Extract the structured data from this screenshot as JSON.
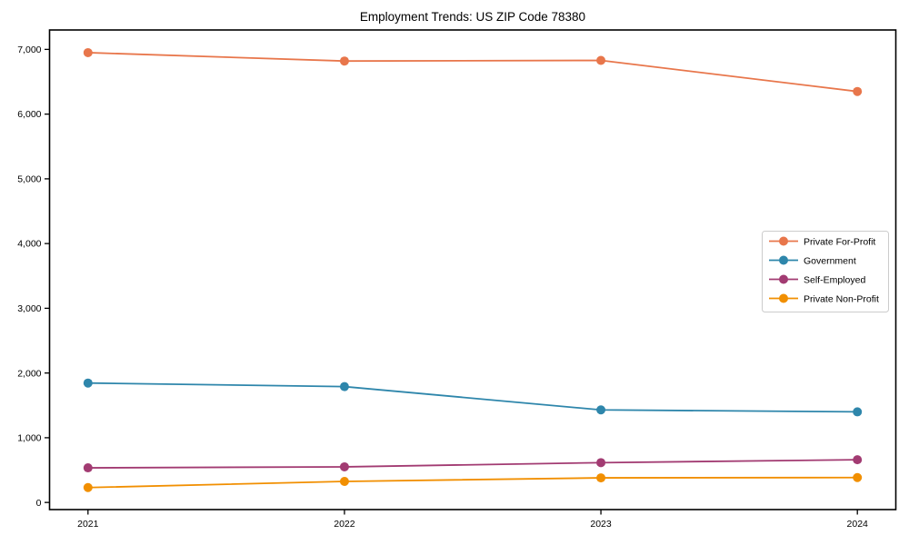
{
  "chart_data": {
    "type": "line",
    "title": "Employment Trends: US ZIP Code 78380",
    "xlabel": "",
    "ylabel": "",
    "x": [
      "2021",
      "2022",
      "2023",
      "2024"
    ],
    "yticks": [
      0,
      1000,
      2000,
      3000,
      4000,
      5000,
      6000,
      7000
    ],
    "ytick_labels": [
      "0",
      "1,000",
      "2,000",
      "3,000",
      "4,000",
      "5,000",
      "6,000",
      "7,000"
    ],
    "ylim": [
      -110,
      7300
    ],
    "grid": false,
    "legend_position": "center right",
    "frame": true,
    "colors": {
      "axes": "#000000",
      "legend_border": "#cccccc",
      "background": "#ffffff"
    },
    "series": [
      {
        "name": "Private For-Profit",
        "color": "#E8764B",
        "values": [
          6950,
          6820,
          6830,
          6350
        ]
      },
      {
        "name": "Government",
        "color": "#2E86AB",
        "values": [
          1845,
          1790,
          1430,
          1400
        ]
      },
      {
        "name": "Self-Employed",
        "color": "#A23B72",
        "values": [
          535,
          550,
          615,
          660
        ]
      },
      {
        "name": "Private Non-Profit",
        "color": "#F18F01",
        "values": [
          230,
          325,
          380,
          385
        ]
      }
    ]
  }
}
